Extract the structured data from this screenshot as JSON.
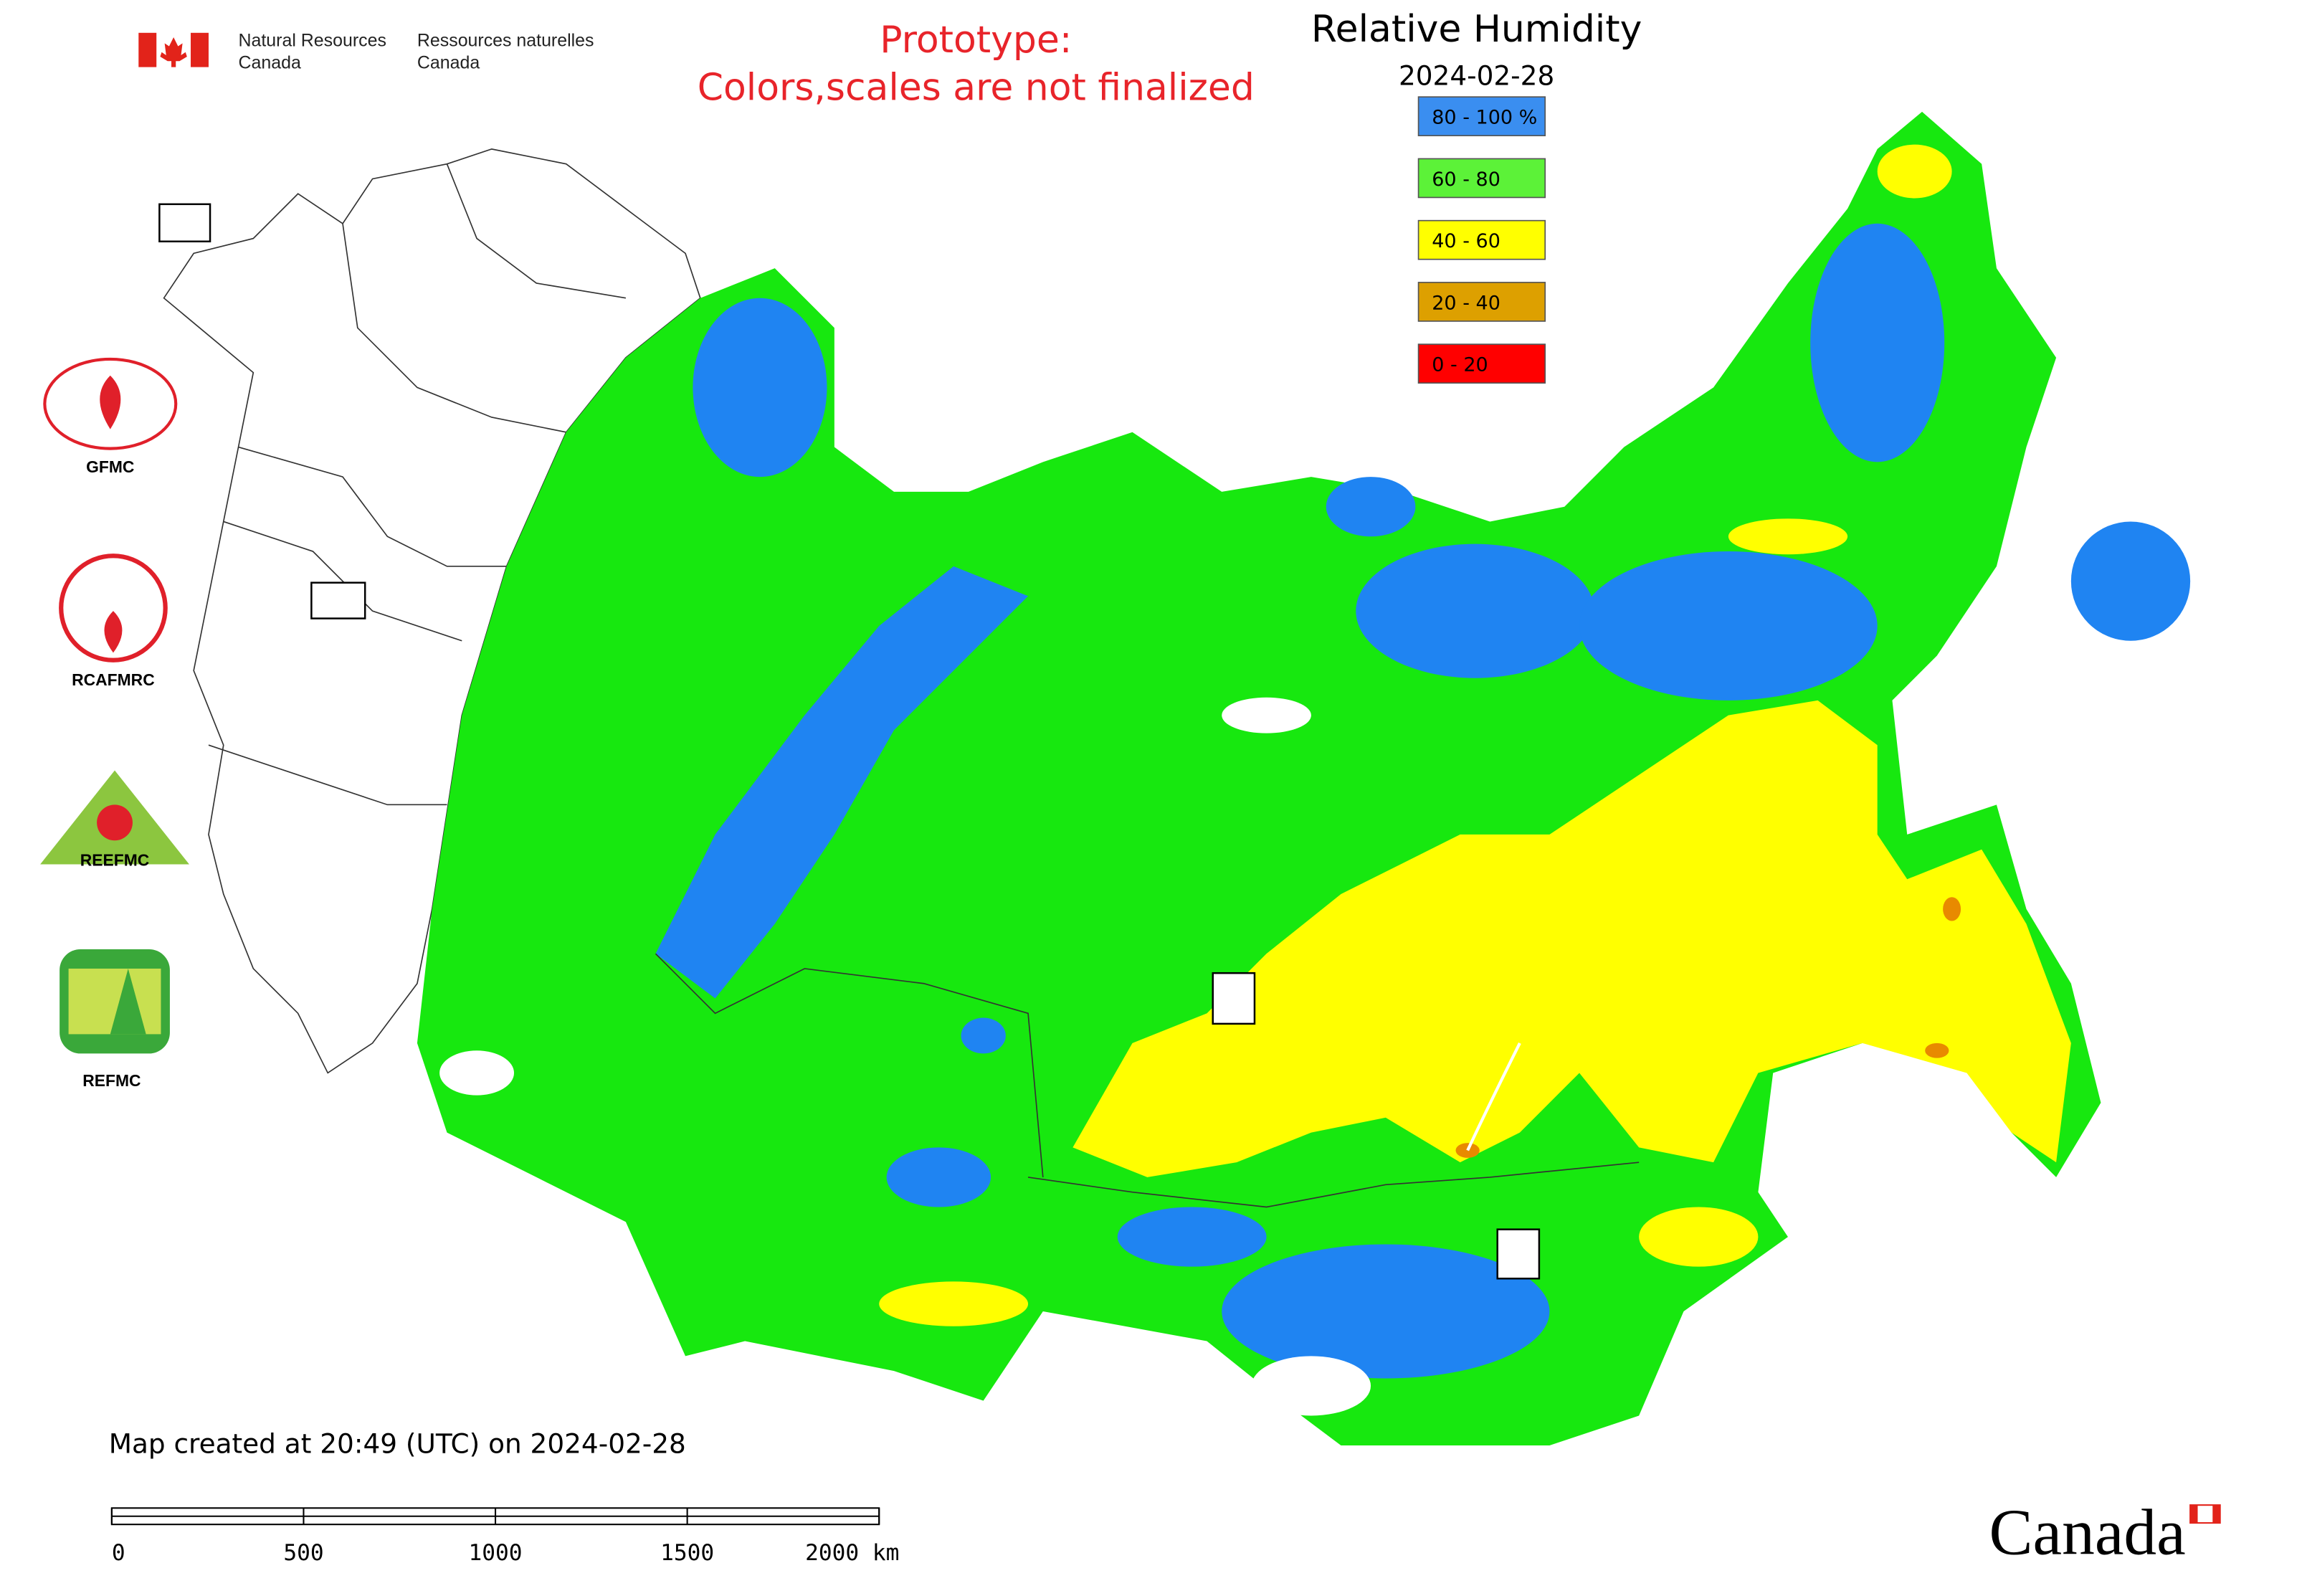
{
  "header": {
    "department_en": [
      "Natural Resources",
      "Canada"
    ],
    "department_fr": [
      "Ressources naturelles",
      "Canada"
    ],
    "notice": [
      "Prototype:",
      "Colors,scales are not finalized"
    ],
    "title": "Relative Humidity",
    "date": "2024-02-28"
  },
  "legend": [
    {
      "label": "80 - 100 %",
      "color": "#3a8ef0"
    },
    {
      "label": "60 - 80",
      "color": "#5cf238"
    },
    {
      "label": "40 - 60",
      "color": "#ffff00"
    },
    {
      "label": "20 - 40",
      "color": "#dda000"
    },
    {
      "label": "0 - 20",
      "color": "#ff0000"
    }
  ],
  "partners": [
    "GFMC",
    "RCAFMRC",
    "REEFMC",
    "REFMC"
  ],
  "footer": {
    "created": "Map created at 20:49 (UTC) on 2024-02-28",
    "scale_labels": [
      "0",
      "500",
      "1000",
      "1500",
      "2000 km"
    ],
    "wordmark": "Canada"
  }
}
